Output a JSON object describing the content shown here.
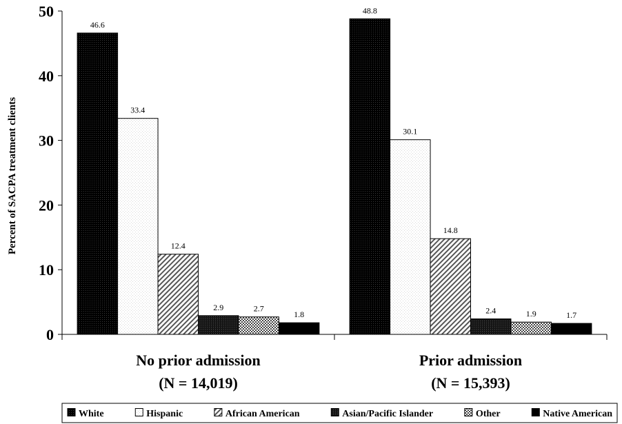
{
  "chart_data": {
    "type": "bar",
    "ylabel": "Percent of SACPA treatment clients",
    "ylim": [
      0,
      50
    ],
    "yticks": [
      0,
      10,
      20,
      30,
      40,
      50
    ],
    "categories": [
      {
        "line1": "No prior admission",
        "line2": "(N = 14,019)"
      },
      {
        "line1": "Prior admission",
        "line2": "(N = 15,393)"
      }
    ],
    "series": [
      {
        "name": "White",
        "values": [
          46.6,
          48.8
        ],
        "pattern": "pat-white"
      },
      {
        "name": "Hispanic",
        "values": [
          33.4,
          30.1
        ],
        "pattern": "pat-hispanic"
      },
      {
        "name": "African American",
        "values": [
          12.4,
          14.8
        ],
        "pattern": "pat-african"
      },
      {
        "name": "Asian/Pacific Islander",
        "values": [
          2.9,
          2.4
        ],
        "pattern": "pat-asian"
      },
      {
        "name": "Other",
        "values": [
          2.7,
          1.9
        ],
        "pattern": "pat-other"
      },
      {
        "name": "Native American",
        "values": [
          1.8,
          1.7
        ],
        "pattern": "pat-native"
      }
    ],
    "grid": false,
    "legend_position": "bottom"
  }
}
